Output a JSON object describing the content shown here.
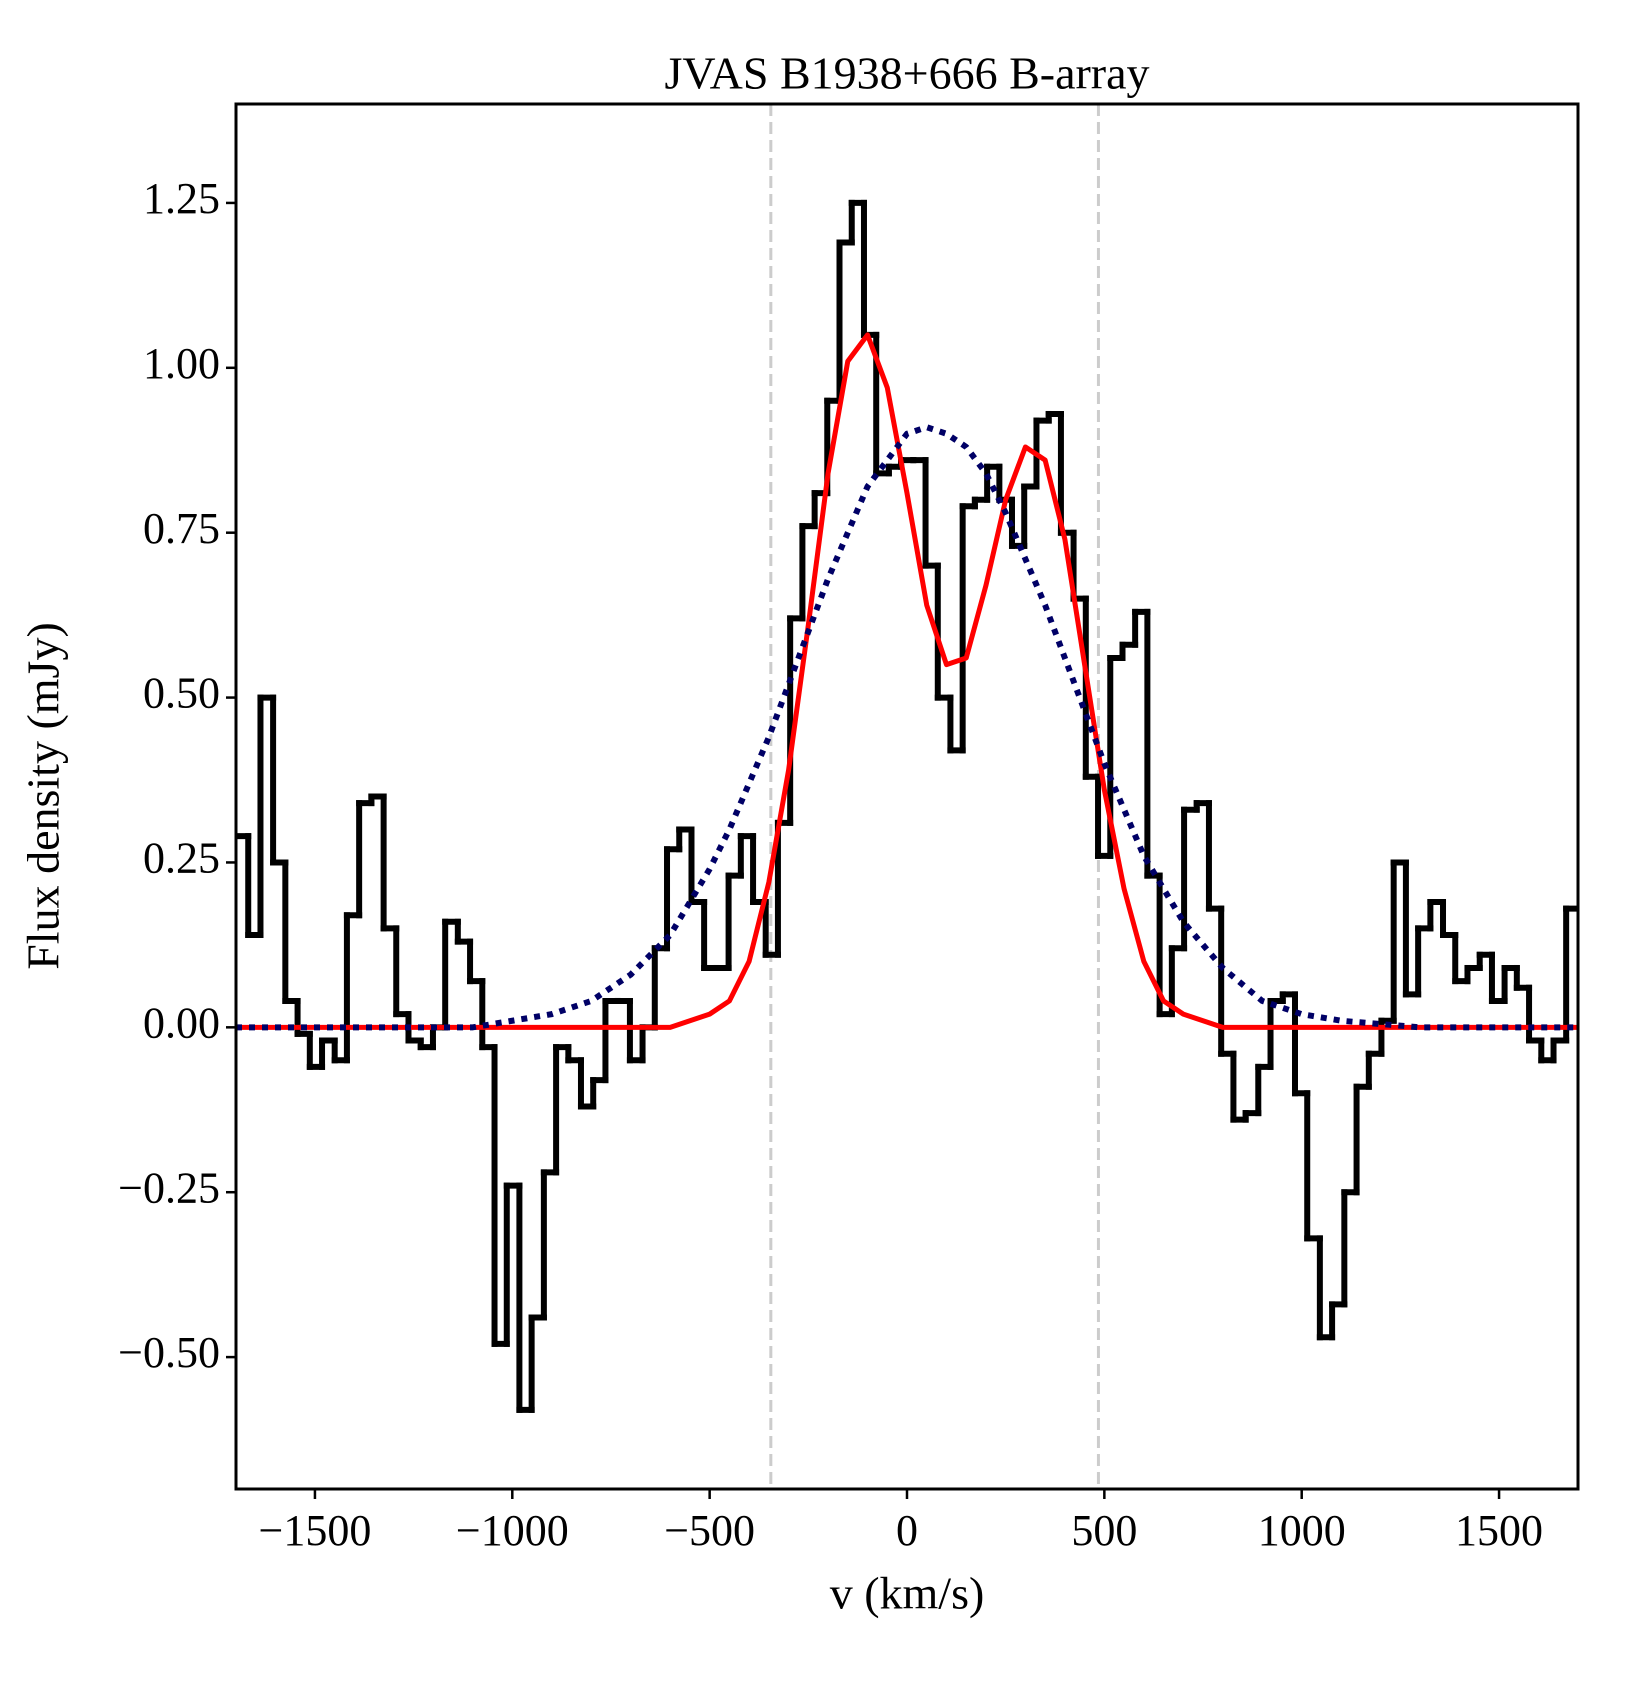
{
  "chart_data": {
    "type": "step",
    "title": "JVAS B1938+666 B-array",
    "x_label": "v (km/s)",
    "y_label": "Flux density (mJy)",
    "xlim": [
      -1700,
      1700
    ],
    "ylim": [
      -0.7,
      1.4
    ],
    "xticks": [
      {
        "value": -1500,
        "label": "−1500"
      },
      {
        "value": -1000,
        "label": "−1000"
      },
      {
        "value": -500,
        "label": "−500"
      },
      0,
      500,
      1000,
      1500
    ],
    "yticks": [
      {
        "value": -0.5,
        "label": "−0.50"
      },
      {
        "value": -0.25,
        "label": "−0.25"
      },
      {
        "value": 0,
        "label": "0.00"
      },
      {
        "value": 0.25,
        "label": "0.25"
      },
      {
        "value": 0.5,
        "label": "0.50"
      },
      {
        "value": 0.75,
        "label": "0.75"
      },
      {
        "value": 1.0,
        "label": "1.00"
      },
      {
        "value": 1.25,
        "label": "1.25"
      }
    ],
    "grid": false,
    "bins": [
      -1700,
      -1669,
      -1638,
      -1606,
      -1575,
      -1544,
      -1513,
      -1482,
      -1450,
      -1419,
      -1388,
      -1357,
      -1326,
      -1294,
      -1263,
      -1232,
      -1201,
      -1170,
      -1138,
      -1107,
      -1076,
      -1045,
      -1014,
      -982,
      -951,
      -920,
      -889,
      -858,
      -826,
      -795,
      -764,
      -733,
      -702,
      -670,
      -639,
      -608,
      -577,
      -546,
      -514,
      -483,
      -452,
      -421,
      -390,
      -358,
      -327,
      -296,
      -265,
      -234,
      -202,
      -171,
      -140,
      -109,
      -78,
      -46,
      -15,
      16,
      47,
      78,
      110,
      141,
      172,
      203,
      234,
      266,
      297,
      328,
      359,
      390,
      422,
      453,
      484,
      515,
      546,
      578,
      609,
      640,
      671,
      702,
      734,
      765,
      796,
      827,
      858,
      890,
      921,
      952,
      983,
      1014,
      1046,
      1077,
      1108,
      1139,
      1170,
      1202,
      1233,
      1264,
      1295,
      1326,
      1358,
      1389,
      1420,
      1451,
      1482,
      1514,
      1545,
      1576,
      1607,
      1638,
      1670,
      1700
    ],
    "histogram": {
      "color": "#000000",
      "values": [
        0.29,
        0.14,
        0.5,
        0.25,
        0.04,
        -0.01,
        -0.06,
        -0.02,
        -0.05,
        0.17,
        0.34,
        0.35,
        0.15,
        0.02,
        -0.02,
        -0.03,
        0.0,
        0.16,
        0.13,
        0.07,
        -0.03,
        -0.48,
        -0.24,
        -0.58,
        -0.44,
        -0.22,
        -0.03,
        -0.05,
        -0.12,
        -0.08,
        0.04,
        0.04,
        -0.05,
        0.0,
        0.12,
        0.27,
        0.3,
        0.19,
        0.09,
        0.09,
        0.23,
        0.29,
        0.19,
        0.11,
        0.31,
        0.62,
        0.76,
        0.81,
        0.95,
        1.19,
        1.25,
        1.05,
        0.84,
        0.85,
        0.86,
        0.86,
        0.7,
        0.5,
        0.42,
        0.79,
        0.8,
        0.85,
        0.8,
        0.73,
        0.82,
        0.92,
        0.93,
        0.75,
        0.65,
        0.38,
        0.26,
        0.56,
        0.58,
        0.63,
        0.23,
        0.02,
        0.12,
        0.33,
        0.34,
        0.18,
        -0.04,
        -0.14,
        -0.13,
        -0.06,
        0.04,
        0.05,
        -0.1,
        -0.32,
        -0.47,
        -0.42,
        -0.25,
        -0.09,
        -0.04,
        0.01,
        0.25,
        0.05,
        0.15,
        0.19,
        0.14,
        0.07,
        0.09,
        0.11,
        0.04,
        0.09,
        0.06,
        -0.02,
        -0.05,
        -0.02,
        0.18
      ]
    },
    "x": [
      -1700,
      -1500,
      -1300,
      -1100,
      -900,
      -800,
      -700,
      -600,
      -550,
      -500,
      -450,
      -400,
      -350,
      -300,
      -250,
      -200,
      -150,
      -100,
      -50,
      0,
      50,
      100,
      150,
      200,
      250,
      300,
      350,
      400,
      450,
      500,
      550,
      600,
      650,
      700,
      800,
      900,
      1000,
      1100,
      1300,
      1500,
      1700
    ],
    "series": [
      {
        "color": "#ff0000",
        "style": "solid",
        "values": [
          0,
          0,
          0,
          0,
          0,
          0,
          0,
          0,
          0.01,
          0.02,
          0.04,
          0.1,
          0.22,
          0.39,
          0.61,
          0.84,
          1.01,
          1.05,
          0.97,
          0.81,
          0.64,
          0.55,
          0.56,
          0.67,
          0.8,
          0.88,
          0.86,
          0.74,
          0.55,
          0.36,
          0.21,
          0.1,
          0.04,
          0.02,
          0,
          0,
          0,
          0,
          0,
          0,
          0
        ]
      },
      {
        "color": "#000066",
        "style": "dotted",
        "values": [
          0,
          0,
          0,
          0,
          0.02,
          0.04,
          0.08,
          0.14,
          0.19,
          0.24,
          0.3,
          0.37,
          0.44,
          0.52,
          0.6,
          0.68,
          0.75,
          0.82,
          0.86,
          0.9,
          0.91,
          0.9,
          0.88,
          0.84,
          0.78,
          0.71,
          0.64,
          0.56,
          0.48,
          0.4,
          0.33,
          0.26,
          0.21,
          0.16,
          0.09,
          0.04,
          0.02,
          0.01,
          0,
          0,
          0
        ]
      }
    ],
    "vlines": {
      "color": "#cccccc",
      "values": [
        -345,
        485
      ]
    }
  }
}
